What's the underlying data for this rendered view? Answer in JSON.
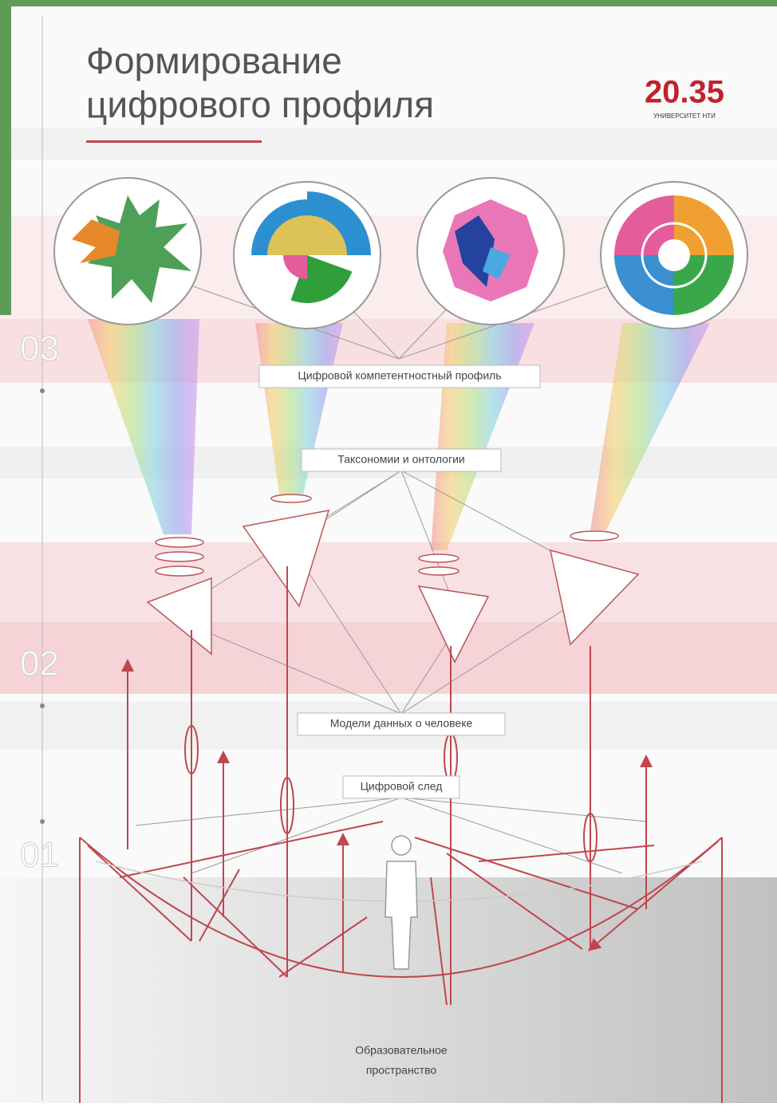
{
  "header": {
    "title_lines": [
      "Формирование",
      "цифрового профиля"
    ],
    "logo": {
      "number": "20.35",
      "caption": "УНИВЕРСИТЕТ НТИ"
    }
  },
  "levels": [
    "03",
    "02",
    "01"
  ],
  "labels": {
    "profile": "Цифровой компетентностный профиль",
    "taxonomies": "Таксономии и онтологии",
    "models": "Модели данных о человеке",
    "trace": "Цифровой след",
    "space_lines": [
      "Образовательное",
      "пространство"
    ]
  }
}
